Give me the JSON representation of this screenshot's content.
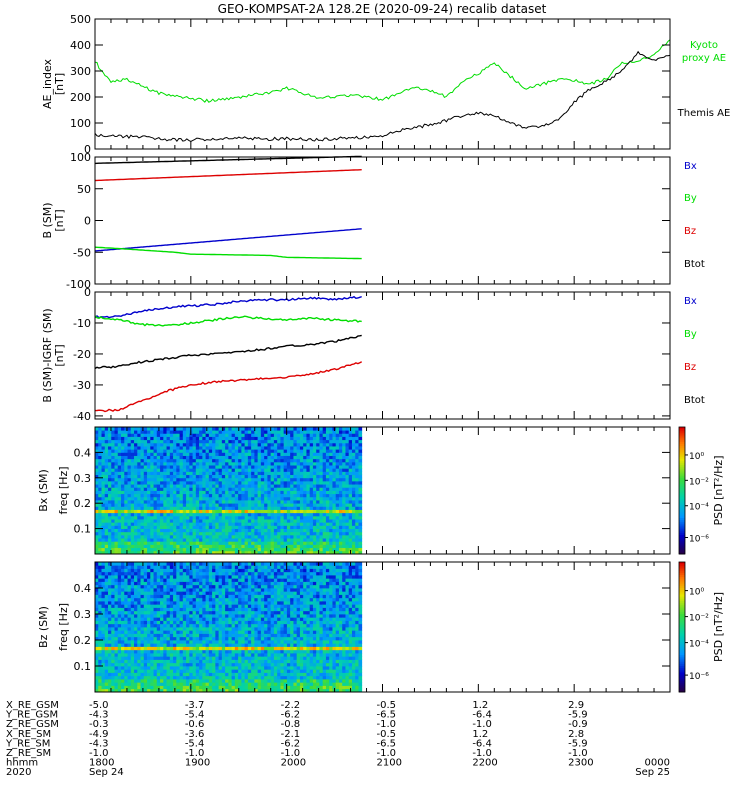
{
  "title": "GEO-KOMPSAT-2A 128.2E (2020-09-24) recalib dataset",
  "colors": {
    "black": "#000000",
    "red": "#dd0000",
    "green": "#00dd00",
    "blue": "#0000cc"
  },
  "chart_data": [
    {
      "id": "ae",
      "type": "line",
      "ylabel": "AE_index",
      "yunit": "[nT]",
      "ylim": [
        0,
        500
      ],
      "yticks": [
        "0",
        "100",
        "200",
        "300",
        "400",
        "500"
      ],
      "xlim": [
        1800,
        2400
      ],
      "series": [
        {
          "name": "Kyoto proxy AE",
          "legend_lines": [
            "Kyoto",
            "proxy AE"
          ],
          "color": "#00dd00",
          "x": [
            1800,
            1805,
            1810,
            1820,
            1830,
            1840,
            1850,
            1900,
            1910,
            1920,
            1930,
            1940,
            1950,
            2000,
            2010,
            2020,
            2030,
            2040,
            2050,
            2100,
            2110,
            2120,
            2130,
            2140,
            2150,
            2200,
            2210,
            2220,
            2230,
            2240,
            2250,
            2300,
            2310,
            2320,
            2330,
            2340,
            2350,
            2400
          ],
          "y": [
            340,
            290,
            260,
            270,
            240,
            215,
            205,
            195,
            185,
            190,
            195,
            210,
            215,
            235,
            215,
            195,
            200,
            205,
            200,
            190,
            210,
            240,
            225,
            200,
            260,
            290,
            330,
            280,
            230,
            250,
            265,
            265,
            250,
            270,
            330,
            340,
            360,
            420
          ]
        },
        {
          "name": "Themis AE",
          "legend_lines": [
            "Themis AE"
          ],
          "color": "#000000",
          "x": [
            1800,
            1810,
            1820,
            1830,
            1840,
            1850,
            1900,
            1910,
            1920,
            1930,
            1940,
            1950,
            2000,
            2010,
            2020,
            2030,
            2040,
            2050,
            2100,
            2110,
            2120,
            2130,
            2140,
            2150,
            2200,
            2210,
            2220,
            2230,
            2240,
            2250,
            2300,
            2310,
            2320,
            2330,
            2340,
            2350,
            2400
          ],
          "y": [
            55,
            50,
            48,
            45,
            40,
            35,
            35,
            38,
            40,
            42,
            40,
            38,
            40,
            38,
            36,
            40,
            42,
            45,
            50,
            70,
            80,
            95,
            110,
            130,
            140,
            130,
            100,
            80,
            90,
            110,
            180,
            230,
            260,
            300,
            370,
            340,
            360
          ]
        }
      ]
    },
    {
      "id": "bsm",
      "type": "line",
      "ylabel": "B (SM)",
      "yunit": "[nT]",
      "ylim": [
        -100,
        100
      ],
      "yticks": [
        "-100",
        "-50",
        "0",
        "50",
        "100"
      ],
      "xlim": [
        1800,
        2400
      ],
      "series": [
        {
          "name": "Bx",
          "color": "#0000cc",
          "x": [
            1800,
            2047
          ],
          "y": [
            -48,
            -13
          ]
        },
        {
          "name": "By",
          "color": "#00dd00",
          "x": [
            1800,
            1820,
            1850,
            1900,
            1950,
            2000,
            2047
          ],
          "y": [
            -42,
            -45,
            -50,
            -53,
            -55,
            -58,
            -60
          ]
        },
        {
          "name": "Bz",
          "color": "#dd0000",
          "x": [
            1800,
            2047
          ],
          "y": [
            63,
            80
          ]
        },
        {
          "name": "Btot",
          "color": "#000000",
          "x": [
            1800,
            2047
          ],
          "y": [
            90,
            101
          ]
        }
      ]
    },
    {
      "id": "bdiff",
      "type": "line",
      "ylabel": "B (SM)-IGRF (SM)",
      "yunit": "[nT]",
      "ylim": [
        -41,
        0
      ],
      "yticks": [
        "-40",
        "-30",
        "-20",
        "-10",
        "0"
      ],
      "xlim": [
        1800,
        2400
      ],
      "series": [
        {
          "name": "Bx",
          "color": "#0000cc",
          "x": [
            1800,
            1815,
            1830,
            1845,
            1900,
            1915,
            1930,
            1945,
            2000,
            2015,
            2030,
            2047
          ],
          "y": [
            -8,
            -8,
            -6,
            -5,
            -4.5,
            -4,
            -3,
            -2.5,
            -2.5,
            -2,
            -2.5,
            -1.5
          ]
        },
        {
          "name": "By",
          "color": "#00dd00",
          "x": [
            1800,
            1815,
            1830,
            1845,
            1900,
            1915,
            1930,
            1945,
            2000,
            2015,
            2030,
            2047
          ],
          "y": [
            -8,
            -9,
            -10.5,
            -11,
            -10,
            -9,
            -8,
            -8.5,
            -9,
            -8.5,
            -9,
            -9.5
          ]
        },
        {
          "name": "Bz",
          "color": "#dd0000",
          "x": [
            1800,
            1815,
            1830,
            1845,
            1900,
            1915,
            1930,
            1945,
            2000,
            2015,
            2030,
            2047
          ],
          "y": [
            -38.5,
            -38,
            -35,
            -32,
            -30,
            -29,
            -28.5,
            -28,
            -27.5,
            -26.5,
            -25,
            -22.5
          ]
        },
        {
          "name": "Btot",
          "color": "#000000",
          "x": [
            1800,
            1815,
            1830,
            1845,
            1900,
            1915,
            1930,
            1945,
            2000,
            2015,
            2030,
            2047
          ],
          "y": [
            -24.5,
            -24,
            -22.5,
            -21.5,
            -20.5,
            -20,
            -19.5,
            -18.5,
            -17.5,
            -17,
            -16,
            -14
          ]
        }
      ]
    },
    {
      "id": "bx_psd",
      "type": "heatmap",
      "ylabel": "Bx (SM)",
      "ylabel2": "freq [Hz]",
      "ylim": [
        0,
        0.5
      ],
      "yticks": [
        "0.1",
        "0.2",
        "0.3",
        "0.4"
      ],
      "xlim": [
        1800,
        2400
      ],
      "data_xlim": [
        1800,
        2047
      ],
      "band_freq": 0.17,
      "colorbar": {
        "label": "PSD",
        "unit": "[nT²/Hz]",
        "ticks": [
          "10⁰",
          "10⁻²",
          "10⁻⁴",
          "10⁻⁶"
        ]
      }
    },
    {
      "id": "bz_psd",
      "type": "heatmap",
      "ylabel": "Bz (SM)",
      "ylabel2": "freq [Hz]",
      "ylim": [
        0,
        0.5
      ],
      "yticks": [
        "0.1",
        "0.2",
        "0.3",
        "0.4"
      ],
      "xlim": [
        1800,
        2400
      ],
      "data_xlim": [
        1800,
        2047
      ],
      "band_freq": 0.17,
      "colorbar": {
        "label": "PSD",
        "unit": "[nT²/Hz]",
        "ticks": [
          "10⁰",
          "10⁻²",
          "10⁻⁴",
          "10⁻⁶"
        ]
      }
    }
  ],
  "x_axis": {
    "row_labels": [
      "X_RE_GSM",
      "Y_RE_GSM",
      "Z_RE_GSM",
      "X_RE_SM",
      "Y_RE_SM",
      "Z_RE_SM",
      "hhmm",
      "2020"
    ],
    "columns": [
      {
        "values": [
          "-5.0",
          "-4.3",
          "-0.3",
          "-4.9",
          "-4.3",
          "-1.0",
          "1800",
          "Sep 24"
        ]
      },
      {
        "values": [
          "-3.7",
          "-5.4",
          "-0.6",
          "-3.6",
          "-5.4",
          "-1.0",
          "1900",
          ""
        ]
      },
      {
        "values": [
          "-2.2",
          "-6.2",
          "-0.8",
          "-2.1",
          "-6.2",
          "-1.0",
          "2000",
          ""
        ]
      },
      {
        "values": [
          "-0.5",
          "-6.5",
          "-1.0",
          "-0.5",
          "-6.5",
          "-1.0",
          "2100",
          ""
        ]
      },
      {
        "values": [
          "1.2",
          "-6.4",
          "-1.0",
          "1.2",
          "-6.4",
          "-1.0",
          "2200",
          ""
        ]
      },
      {
        "values": [
          "2.9",
          "-5.9",
          "-0.9",
          "2.8",
          "-5.9",
          "-1.0",
          "2300",
          ""
        ]
      },
      {
        "values": [
          "",
          "",
          "",
          "",
          "",
          "",
          "0000",
          "Sep 25"
        ]
      }
    ]
  }
}
